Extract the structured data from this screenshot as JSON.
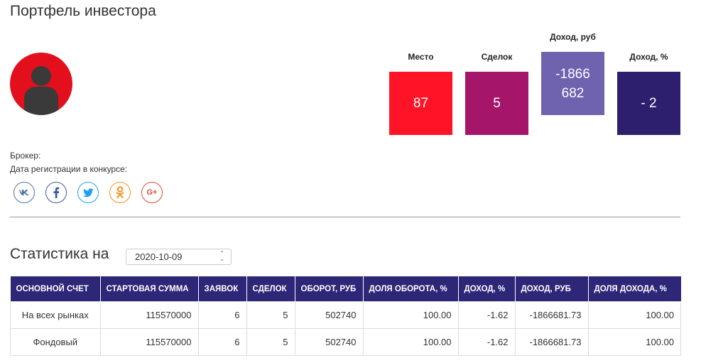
{
  "page_title": "Портфель инвестора",
  "stats": [
    {
      "label": "Место",
      "value": "87",
      "color": "#ff1427"
    },
    {
      "label": "Сделок",
      "value": "5",
      "color": "#a5156a"
    },
    {
      "label": "Доход, руб",
      "value": "-1866\n682",
      "color": "#6f62ae"
    },
    {
      "label": "Доход, %",
      "value": "- 2",
      "color": "#2e1f6e"
    }
  ],
  "info": {
    "broker_label": "Брокер:",
    "registration_label": "Дата регистрации в конкурсе:"
  },
  "social": [
    {
      "name": "vk-icon",
      "glyph": "vk",
      "color": "#4c75a3"
    },
    {
      "name": "facebook-icon",
      "glyph": "f",
      "color": "#3b5998"
    },
    {
      "name": "twitter-icon",
      "glyph": "t",
      "color": "#1da1f2"
    },
    {
      "name": "odnoklassniki-icon",
      "glyph": "ok",
      "color": "#f7931e"
    },
    {
      "name": "google-plus-icon",
      "glyph": "G+",
      "color": "#dd4b39"
    }
  ],
  "statistics": {
    "heading": "Статистика на",
    "date": "2020-10-09",
    "columns": [
      "ОСНОВНОЙ СЧЕТ",
      "СТАРТОВАЯ СУММА",
      "ЗАЯВОК",
      "СДЕЛОК",
      "ОБОРОТ, РУБ",
      "ДОЛЯ ОБОРОТА, %",
      "ДОХОД, %",
      "ДОХОД, РУБ",
      "ДОЛЯ ДОХОДА, %"
    ],
    "rows": [
      [
        "На всех рынках",
        "115570000",
        "6",
        "5",
        "502740",
        "100.00",
        "-1.62",
        "-1866681.73",
        "100.00"
      ],
      [
        "Фондовый",
        "115570000",
        "6",
        "5",
        "502740",
        "100.00",
        "-1.62",
        "-1866681.73",
        "100.00"
      ]
    ]
  }
}
